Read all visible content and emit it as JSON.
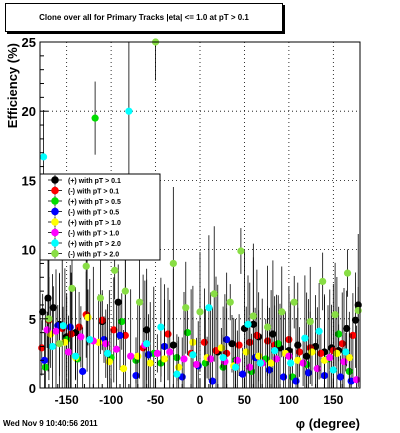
{
  "title": "Clone  over all for Primary Tracks  |eta| <= 1.0 at pT > 0.1",
  "footer": "Wed Nov  9 10:40:56 2011",
  "chart_data": {
    "type": "scatter",
    "xlabel": "φ (degree)",
    "ylabel": "Efficiency (%)",
    "xlim": [
      -180,
      180
    ],
    "ylim": [
      0,
      25
    ],
    "xticks": [
      -150,
      -100,
      -50,
      0,
      50,
      100,
      150
    ],
    "yticks": [
      0,
      5,
      10,
      15,
      20,
      25
    ],
    "grid": true,
    "legend_position": "left-middle",
    "series": [
      {
        "name": "(+) with pT > 0.1",
        "color": "#000000",
        "x": [
          -177,
          -171,
          -165,
          -158,
          -150,
          -140,
          -127,
          -110,
          -92,
          -60,
          -30,
          20,
          36,
          50,
          60,
          66,
          82,
          90,
          100,
          110,
          120,
          130,
          140,
          148,
          156,
          165,
          175,
          178
        ],
        "y": [
          5.5,
          6.5,
          5.8,
          4.6,
          3.7,
          4.0,
          5.2,
          4.8,
          6.2,
          4.2,
          3.1,
          2.6,
          3.2,
          4.3,
          4.6,
          3.7,
          3.9,
          2.9,
          2.7,
          3.1,
          2.3,
          3.0,
          2.6,
          2.9,
          2.7,
          4.3,
          4.9,
          6.0
        ]
      },
      {
        "name": "(-) with pT > 0.1",
        "color": "#ff0000",
        "x": [
          -178,
          -170,
          -155,
          -145,
          -136,
          -128,
          -110,
          -97,
          -84,
          -64,
          -36,
          -10,
          5,
          18,
          30,
          44,
          56,
          64,
          76,
          84,
          100,
          112,
          124,
          136,
          150,
          160,
          172
        ],
        "y": [
          2.9,
          4.9,
          4.3,
          3.9,
          4.4,
          5.3,
          4.9,
          4.2,
          3.8,
          2.9,
          3.9,
          2.5,
          3.3,
          2.7,
          2.5,
          3.1,
          3.3,
          3.8,
          3.4,
          3.1,
          3.5,
          2.6,
          2.9,
          2.5,
          2.7,
          3.2,
          3.8
        ]
      },
      {
        "name": "(+) with pT > 0.5",
        "color": "#00dd00",
        "x": [
          -174,
          -150,
          -138,
          -118,
          -100,
          -88,
          -72,
          -52,
          -44,
          -26,
          -14,
          6,
          26,
          40,
          58,
          74,
          88,
          104,
          120,
          132,
          144,
          156,
          168
        ],
        "y": [
          1.5,
          3.5,
          2.1,
          19.5,
          2.2,
          4.8,
          2.0,
          2.5,
          1.8,
          2.2,
          4.0,
          1.8,
          1.5,
          2.0,
          1.2,
          2.1,
          3.2,
          0.8,
          1.7,
          1.4,
          2.1,
          3.9,
          1.2
        ]
      },
      {
        "name": "(-) with pT > 0.5",
        "color": "#0000ff",
        "x": [
          -175,
          -160,
          -146,
          -132,
          -108,
          -90,
          -72,
          -58,
          -40,
          -20,
          -2,
          14,
          30,
          48,
          62,
          78,
          94,
          108,
          122,
          140,
          158,
          170
        ],
        "y": [
          2.0,
          4.5,
          4.4,
          1.2,
          3.5,
          3.8,
          0.9,
          2.4,
          3.0,
          0.8,
          1.6,
          0.5,
          3.5,
          1.0,
          2.2,
          1.3,
          0.8,
          0.5,
          1.1,
          0.9,
          0.8,
          0.5
        ]
      },
      {
        "name": "(+) with pT > 1.0",
        "color": "#ffff00",
        "x": [
          -168,
          -152,
          -140,
          -126,
          -114,
          -102,
          -86,
          -70,
          -56,
          -40,
          -24,
          -8,
          8,
          24,
          38,
          52,
          66,
          80,
          96,
          110,
          126,
          140,
          154,
          168
        ],
        "y": [
          3.9,
          3.3,
          2.2,
          5.1,
          3.3,
          1.9,
          1.4,
          2.3,
          1.8,
          2.1,
          1.5,
          3.3,
          2.2,
          2.9,
          1.6,
          2.6,
          2.3,
          1.8,
          2.5,
          2.0,
          2.6,
          2.0,
          2.5,
          2.2
        ]
      },
      {
        "name": "(-) with pT > 1.0",
        "color": "#ff00ff",
        "x": [
          -172,
          -162,
          -148,
          -134,
          -120,
          -106,
          -94,
          -78,
          -62,
          -48,
          -34,
          -18,
          -4,
          12,
          28,
          42,
          56,
          70,
          86,
          100,
          116,
          132,
          146,
          162,
          176
        ],
        "y": [
          4.2,
          4.1,
          2.6,
          3.7,
          3.4,
          3.2,
          2.8,
          2.3,
          3.1,
          2.5,
          2.6,
          2.1,
          1.7,
          2.1,
          1.9,
          2.0,
          1.5,
          1.8,
          2.1,
          2.3,
          1.8,
          1.4,
          2.2,
          1.9,
          0.6
        ]
      },
      {
        "name": "(+) with pT > 2.0",
        "color": "#00ffff",
        "x": [
          -176,
          -166,
          -154,
          -140,
          -124,
          -104,
          -80,
          -60,
          -44,
          -26,
          -8,
          10,
          26,
          40,
          54,
          68,
          84,
          102,
          118,
          134,
          150,
          164
        ],
        "y": [
          16.7,
          3.0,
          4.5,
          2.3,
          3.5,
          2.5,
          20.0,
          3.2,
          4.4,
          1.0,
          2.4,
          5.8,
          2.2,
          1.5,
          4.6,
          1.8,
          2.7,
          1.8,
          3.6,
          4.1,
          1.3,
          2.6
        ]
      },
      {
        "name": "(-) with pT > 2.0",
        "color": "#88dd44",
        "x": [
          -170,
          -158,
          -144,
          -128,
          -112,
          -96,
          -84,
          -68,
          -50,
          -30,
          -16,
          0,
          16,
          34,
          46,
          60,
          76,
          92,
          106,
          124,
          138,
          152,
          166,
          178
        ],
        "y": [
          5.0,
          3.2,
          7.2,
          8.8,
          6.5,
          8.5,
          7.0,
          6.2,
          25.0,
          9.0,
          5.8,
          5.5,
          6.8,
          6.2,
          9.9,
          5.2,
          4.4,
          5.5,
          6.2,
          4.8,
          7.7,
          5.3,
          8.3,
          5.6
        ]
      }
    ]
  }
}
